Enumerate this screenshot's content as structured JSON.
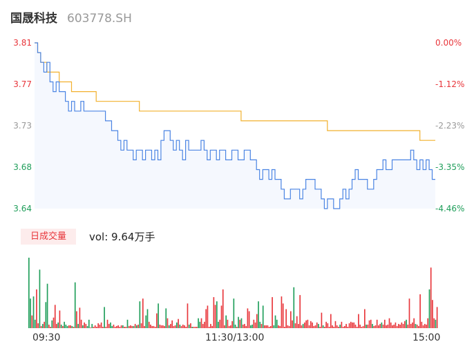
{
  "header": {
    "name": "国晟科技",
    "code": "603778.SH"
  },
  "price_axis": {
    "labels": [
      "3.81",
      "3.77",
      "3.73",
      "3.68",
      "3.64"
    ],
    "colors": [
      "#e8353a",
      "#e8353a",
      "#999999",
      "#1f9e5a",
      "#1f9e5a"
    ]
  },
  "pct_axis": {
    "labels": [
      "0.00%",
      "-1.12%",
      "-2.23%",
      "-3.35%",
      "-4.46%"
    ],
    "colors": [
      "#e8353a",
      "#e8353a",
      "#999999",
      "#1f9e5a",
      "#1f9e5a"
    ]
  },
  "volume": {
    "tab_label": "日成交量",
    "summary": "vol: 9.64万手"
  },
  "time_labels": [
    "09:30",
    "11:30/13:00",
    "15:00"
  ],
  "colors": {
    "price_line": "#4a84e3",
    "avg_line": "#f2b02c",
    "up": "#e8353a",
    "down": "#1f9e5a",
    "area": "#f5f8fe"
  },
  "chart_data": {
    "type": "line",
    "ylim": [
      3.64,
      3.81
    ],
    "pct_range": [
      -4.46,
      0
    ],
    "price": [
      3.81,
      3.8,
      3.79,
      3.78,
      3.79,
      3.77,
      3.76,
      3.77,
      3.76,
      3.76,
      3.75,
      3.74,
      3.75,
      3.74,
      3.74,
      3.75,
      3.74,
      3.74,
      3.74,
      3.74,
      3.74,
      3.74,
      3.74,
      3.73,
      3.73,
      3.72,
      3.72,
      3.71,
      3.7,
      3.71,
      3.7,
      3.7,
      3.69,
      3.7,
      3.7,
      3.69,
      3.7,
      3.7,
      3.69,
      3.7,
      3.69,
      3.71,
      3.72,
      3.72,
      3.71,
      3.7,
      3.71,
      3.7,
      3.69,
      3.71,
      3.7,
      3.7,
      3.7,
      3.7,
      3.71,
      3.7,
      3.69,
      3.7,
      3.7,
      3.69,
      3.7,
      3.7,
      3.69,
      3.69,
      3.7,
      3.7,
      3.69,
      3.69,
      3.7,
      3.7,
      3.69,
      3.69,
      3.68,
      3.67,
      3.68,
      3.68,
      3.67,
      3.68,
      3.67,
      3.67,
      3.66,
      3.65,
      3.65,
      3.66,
      3.66,
      3.66,
      3.65,
      3.66,
      3.67,
      3.67,
      3.67,
      3.66,
      3.66,
      3.65,
      3.64,
      3.65,
      3.65,
      3.64,
      3.64,
      3.65,
      3.66,
      3.65,
      3.66,
      3.67,
      3.68,
      3.67,
      3.67,
      3.67,
      3.66,
      3.66,
      3.67,
      3.68,
      3.68,
      3.69,
      3.68,
      3.68,
      3.69,
      3.69,
      3.69,
      3.69,
      3.69,
      3.69,
      3.7,
      3.69,
      3.68,
      3.69,
      3.68,
      3.69,
      3.68,
      3.67,
      3.67
    ],
    "avg": [
      3.81,
      3.8,
      3.79,
      3.79,
      3.78,
      3.78,
      3.78,
      3.78,
      3.77,
      3.77,
      3.77,
      3.77,
      3.76,
      3.76,
      3.76,
      3.76,
      3.76,
      3.76,
      3.76,
      3.76,
      3.75,
      3.75,
      3.75,
      3.75,
      3.75,
      3.75,
      3.75,
      3.75,
      3.75,
      3.75,
      3.75,
      3.75,
      3.75,
      3.75,
      3.74,
      3.74,
      3.74,
      3.74,
      3.74,
      3.74,
      3.74,
      3.74,
      3.74,
      3.74,
      3.74,
      3.74,
      3.74,
      3.74,
      3.74,
      3.74,
      3.74,
      3.74,
      3.74,
      3.74,
      3.74,
      3.74,
      3.74,
      3.74,
      3.74,
      3.74,
      3.74,
      3.74,
      3.74,
      3.74,
      3.74,
      3.74,
      3.74,
      3.73,
      3.73,
      3.73,
      3.73,
      3.73,
      3.73,
      3.73,
      3.73,
      3.73,
      3.73,
      3.73,
      3.73,
      3.73,
      3.73,
      3.73,
      3.73,
      3.73,
      3.73,
      3.73,
      3.73,
      3.73,
      3.73,
      3.73,
      3.73,
      3.73,
      3.73,
      3.73,
      3.73,
      3.72,
      3.72,
      3.72,
      3.72,
      3.72,
      3.72,
      3.72,
      3.72,
      3.72,
      3.72,
      3.72,
      3.72,
      3.72,
      3.72,
      3.72,
      3.72,
      3.72,
      3.72,
      3.72,
      3.72,
      3.72,
      3.72,
      3.72,
      3.72,
      3.72,
      3.72,
      3.72,
      3.72,
      3.72,
      3.72,
      3.71,
      3.71,
      3.71,
      3.71,
      3.71,
      3.71
    ],
    "volume": [
      [
        100,
        "d"
      ],
      [
        42,
        "d"
      ],
      [
        18,
        "u"
      ],
      [
        45,
        "d"
      ],
      [
        12,
        "d"
      ],
      [
        55,
        "u"
      ],
      [
        7,
        "u"
      ],
      [
        83,
        "d"
      ],
      [
        3,
        "u"
      ],
      [
        6,
        "d"
      ],
      [
        9,
        "u"
      ],
      [
        37,
        "d"
      ],
      [
        63,
        "d"
      ],
      [
        5,
        "u"
      ],
      [
        2,
        "u"
      ],
      [
        11,
        "d"
      ],
      [
        15,
        "u"
      ],
      [
        33,
        "u"
      ],
      [
        6,
        "u"
      ],
      [
        8,
        "d"
      ],
      [
        25,
        "u"
      ],
      [
        5,
        "d"
      ],
      [
        3,
        "u"
      ],
      [
        9,
        "d"
      ],
      [
        5,
        "d"
      ],
      [
        3,
        "d"
      ],
      [
        4,
        "u"
      ],
      [
        4,
        "u"
      ],
      [
        3,
        "d"
      ],
      [
        2,
        "u"
      ],
      [
        65,
        "d"
      ],
      [
        24,
        "u"
      ],
      [
        6,
        "d"
      ],
      [
        29,
        "u"
      ],
      [
        12,
        "u"
      ],
      [
        4,
        "d"
      ],
      [
        8,
        "u"
      ],
      [
        6,
        "u"
      ],
      [
        3,
        "d"
      ],
      [
        12,
        "d"
      ],
      [
        1,
        "u"
      ],
      [
        6,
        "d"
      ],
      [
        2,
        "u"
      ],
      [
        4,
        "u"
      ],
      [
        2,
        "u"
      ],
      [
        7,
        "u"
      ],
      [
        5,
        "u"
      ],
      [
        8,
        "u"
      ],
      [
        2,
        "u"
      ],
      [
        30,
        "d"
      ],
      [
        2,
        "u"
      ],
      [
        12,
        "u"
      ],
      [
        6,
        "u"
      ],
      [
        8,
        "d"
      ],
      [
        3,
        "d"
      ],
      [
        5,
        "u"
      ],
      [
        2,
        "u"
      ],
      [
        3,
        "u"
      ],
      [
        4,
        "u"
      ],
      [
        2,
        "u"
      ],
      [
        4,
        "u"
      ],
      [
        4,
        "d"
      ],
      [
        2,
        "u"
      ],
      [
        2,
        "u"
      ],
      [
        12,
        "d"
      ],
      [
        3,
        "u"
      ],
      [
        4,
        "u"
      ],
      [
        3,
        "u"
      ],
      [
        3,
        "d"
      ],
      [
        6,
        "u"
      ],
      [
        4,
        "d"
      ],
      [
        5,
        "u"
      ],
      [
        38,
        "d"
      ],
      [
        7,
        "u"
      ],
      [
        42,
        "u"
      ],
      [
        3,
        "u"
      ],
      [
        18,
        "d"
      ],
      [
        27,
        "d"
      ],
      [
        9,
        "u"
      ],
      [
        5,
        "u"
      ],
      [
        3,
        "u"
      ],
      [
        3,
        "u"
      ],
      [
        2,
        "u"
      ],
      [
        21,
        "u"
      ],
      [
        35,
        "d"
      ],
      [
        5,
        "u"
      ],
      [
        4,
        "u"
      ],
      [
        4,
        "u"
      ],
      [
        3,
        "u"
      ],
      [
        28,
        "d"
      ],
      [
        14,
        "u"
      ],
      [
        4,
        "d"
      ],
      [
        6,
        "u"
      ],
      [
        11,
        "u"
      ],
      [
        3,
        "u"
      ],
      [
        4,
        "u"
      ],
      [
        8,
        "d"
      ],
      [
        13,
        "u"
      ],
      [
        5,
        "d"
      ],
      [
        3,
        "u"
      ],
      [
        5,
        "u"
      ],
      [
        4,
        "u"
      ],
      [
        2,
        "u"
      ],
      [
        35,
        "u"
      ],
      [
        5,
        "d"
      ],
      [
        7,
        "u"
      ],
      [
        2,
        "d"
      ],
      [
        2,
        "u"
      ],
      [
        2,
        "u"
      ],
      [
        2,
        "u"
      ],
      [
        14,
        "d"
      ],
      [
        9,
        "d"
      ],
      [
        14,
        "u"
      ],
      [
        6,
        "u"
      ],
      [
        9,
        "u"
      ],
      [
        27,
        "u"
      ],
      [
        32,
        "u"
      ],
      [
        2,
        "u"
      ],
      [
        6,
        "u"
      ],
      [
        3,
        "u"
      ],
      [
        44,
        "u"
      ],
      [
        33,
        "u"
      ],
      [
        38,
        "d"
      ],
      [
        9,
        "d"
      ],
      [
        12,
        "u"
      ],
      [
        32,
        "u"
      ],
      [
        55,
        "u"
      ],
      [
        4,
        "u"
      ],
      [
        18,
        "d"
      ],
      [
        12,
        "u"
      ],
      [
        3,
        "u"
      ],
      [
        4,
        "u"
      ],
      [
        10,
        "u"
      ],
      [
        42,
        "d"
      ],
      [
        5,
        "d"
      ],
      [
        2,
        "u"
      ],
      [
        16,
        "d"
      ],
      [
        12,
        "u"
      ],
      [
        14,
        "d"
      ],
      [
        5,
        "u"
      ],
      [
        6,
        "u"
      ],
      [
        3,
        "u"
      ],
      [
        28,
        "u"
      ],
      [
        24,
        "u"
      ],
      [
        4,
        "d"
      ],
      [
        5,
        "d"
      ],
      [
        12,
        "u"
      ],
      [
        8,
        "u"
      ],
      [
        20,
        "u"
      ],
      [
        38,
        "d"
      ],
      [
        9,
        "d"
      ],
      [
        6,
        "u"
      ],
      [
        32,
        "d"
      ],
      [
        4,
        "u"
      ],
      [
        4,
        "u"
      ],
      [
        4,
        "u"
      ],
      [
        2,
        "u"
      ],
      [
        3,
        "u"
      ],
      [
        44,
        "u"
      ],
      [
        4,
        "d"
      ],
      [
        18,
        "d"
      ],
      [
        12,
        "d"
      ],
      [
        4,
        "u"
      ],
      [
        3,
        "u"
      ],
      [
        45,
        "u"
      ],
      [
        35,
        "u"
      ],
      [
        2,
        "u"
      ],
      [
        27,
        "u"
      ],
      [
        4,
        "u"
      ],
      [
        3,
        "u"
      ],
      [
        24,
        "u"
      ],
      [
        11,
        "u"
      ],
      [
        58,
        "d"
      ],
      [
        7,
        "u"
      ],
      [
        17,
        "u"
      ],
      [
        6,
        "u"
      ],
      [
        47,
        "u"
      ],
      [
        4,
        "u"
      ],
      [
        6,
        "d"
      ],
      [
        8,
        "u"
      ],
      [
        11,
        "u"
      ],
      [
        12,
        "u"
      ],
      [
        4,
        "u"
      ],
      [
        10,
        "u"
      ],
      [
        8,
        "u"
      ],
      [
        3,
        "u"
      ],
      [
        4,
        "u"
      ],
      [
        8,
        "u"
      ],
      [
        6,
        "d"
      ],
      [
        2,
        "u"
      ],
      [
        22,
        "u"
      ],
      [
        4,
        "d"
      ],
      [
        2,
        "u"
      ],
      [
        9,
        "u"
      ],
      [
        7,
        "u"
      ],
      [
        2,
        "u"
      ],
      [
        20,
        "u"
      ],
      [
        4,
        "u"
      ],
      [
        2,
        "u"
      ],
      [
        10,
        "u"
      ],
      [
        4,
        "u"
      ],
      [
        2,
        "u"
      ],
      [
        5,
        "d"
      ],
      [
        9,
        "u"
      ],
      [
        2,
        "u"
      ],
      [
        3,
        "u"
      ],
      [
        6,
        "u"
      ],
      [
        2,
        "u"
      ],
      [
        7,
        "u"
      ],
      [
        9,
        "u"
      ],
      [
        8,
        "u"
      ],
      [
        8,
        "u"
      ],
      [
        5,
        "u"
      ],
      [
        2,
        "u"
      ],
      [
        20,
        "u"
      ],
      [
        5,
        "u"
      ],
      [
        2,
        "u"
      ],
      [
        3,
        "u"
      ],
      [
        27,
        "u"
      ],
      [
        5,
        "d"
      ],
      [
        5,
        "u"
      ],
      [
        11,
        "u"
      ],
      [
        12,
        "u"
      ],
      [
        6,
        "d"
      ],
      [
        3,
        "u"
      ],
      [
        4,
        "u"
      ],
      [
        12,
        "u"
      ],
      [
        4,
        "u"
      ],
      [
        6,
        "u"
      ],
      [
        8,
        "d"
      ],
      [
        5,
        "u"
      ],
      [
        12,
        "u"
      ],
      [
        4,
        "u"
      ],
      [
        5,
        "u"
      ],
      [
        14,
        "u"
      ],
      [
        8,
        "u"
      ],
      [
        4,
        "u"
      ],
      [
        5,
        "u"
      ],
      [
        8,
        "u"
      ],
      [
        3,
        "u"
      ],
      [
        6,
        "u"
      ],
      [
        5,
        "u"
      ],
      [
        8,
        "u"
      ],
      [
        6,
        "u"
      ],
      [
        10,
        "u"
      ],
      [
        12,
        "d"
      ],
      [
        5,
        "u"
      ],
      [
        42,
        "u"
      ],
      [
        6,
        "u"
      ],
      [
        8,
        "u"
      ],
      [
        14,
        "u"
      ],
      [
        6,
        "d"
      ],
      [
        5,
        "u"
      ],
      [
        3,
        "u"
      ],
      [
        48,
        "u"
      ],
      [
        9,
        "u"
      ],
      [
        4,
        "u"
      ],
      [
        6,
        "u"
      ],
      [
        5,
        "u"
      ],
      [
        14,
        "u"
      ],
      [
        55,
        "d"
      ],
      [
        86,
        "u"
      ],
      [
        40,
        "u"
      ],
      [
        14,
        "u"
      ],
      [
        12,
        "d"
      ],
      [
        30,
        "u"
      ]
    ]
  }
}
